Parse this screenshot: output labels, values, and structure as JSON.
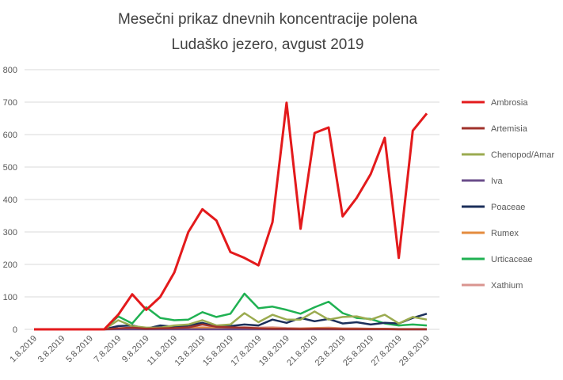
{
  "chart_data": {
    "type": "line",
    "title": "Mesečni prikaz dnevnih koncentracije polena",
    "subtitle": "Ludaško jezero, avgust 2019",
    "categories": [
      "1.8.2019",
      null,
      "3.8.2019",
      null,
      "5.8.2019",
      null,
      "7.8.2019",
      null,
      "9.8.2019",
      null,
      "11.8.2019",
      null,
      "13.8.2019",
      null,
      "15.8.2019",
      null,
      "17.8.2019",
      null,
      "19.8.2019",
      null,
      "21.8.2019",
      null,
      "23.8.2019",
      null,
      "25.8.2019",
      null,
      "27.8.2019",
      null,
      "29.8.2019"
    ],
    "series": [
      {
        "name": "Ambrosia",
        "color": "#e31a1c",
        "values": [
          0,
          0,
          0,
          0,
          0,
          0,
          45,
          108,
          60,
          100,
          175,
          300,
          370,
          335,
          238,
          220,
          197,
          330,
          698,
          310,
          605,
          622,
          348,
          405,
          478,
          590,
          220,
          612,
          665
        ]
      },
      {
        "name": "Artemisia",
        "color": "#a0322b",
        "values": [
          0,
          0,
          0,
          0,
          0,
          0,
          3,
          5,
          2,
          3,
          4,
          6,
          15,
          8,
          6,
          5,
          3,
          2,
          2,
          1,
          2,
          2,
          1,
          1,
          1,
          1,
          0,
          0,
          0
        ]
      },
      {
        "name": "Chenopod/Amar",
        "color": "#9bab50",
        "values": [
          0,
          0,
          0,
          0,
          0,
          0,
          28,
          10,
          5,
          5,
          12,
          15,
          28,
          12,
          15,
          50,
          22,
          45,
          30,
          30,
          55,
          30,
          38,
          40,
          30,
          45,
          18,
          38,
          30
        ]
      },
      {
        "name": "Iva",
        "color": "#6a4c8a",
        "values": [
          0,
          0,
          0,
          0,
          0,
          0,
          0,
          0,
          0,
          0,
          0,
          0,
          0,
          0,
          0,
          0,
          0,
          0,
          0,
          0,
          0,
          0,
          0,
          0,
          0,
          0,
          0,
          0,
          0
        ]
      },
      {
        "name": "Poaceae",
        "color": "#1b2f5a",
        "values": [
          0,
          0,
          0,
          0,
          0,
          0,
          10,
          12,
          2,
          12,
          8,
          12,
          20,
          8,
          10,
          15,
          12,
          30,
          20,
          35,
          25,
          32,
          18,
          22,
          15,
          20,
          18,
          35,
          48
        ]
      },
      {
        "name": "Rumex",
        "color": "#e48b3e",
        "values": [
          0,
          0,
          0,
          0,
          0,
          0,
          2,
          2,
          1,
          2,
          2,
          3,
          5,
          3,
          2,
          3,
          2,
          3,
          2,
          2,
          3,
          3,
          2,
          2,
          2,
          2,
          1,
          1,
          1
        ]
      },
      {
        "name": "Urticaceae",
        "color": "#1fb152",
        "values": [
          0,
          0,
          0,
          0,
          0,
          0,
          40,
          18,
          68,
          35,
          28,
          30,
          53,
          38,
          48,
          110,
          65,
          70,
          60,
          48,
          68,
          85,
          50,
          35,
          32,
          18,
          12,
          15,
          12
        ]
      },
      {
        "name": "Xathium",
        "color": "#d9958f",
        "values": [
          0,
          0,
          0,
          0,
          0,
          0,
          1,
          2,
          1,
          2,
          3,
          4,
          6,
          5,
          4,
          6,
          5,
          6,
          4,
          3,
          4,
          5,
          3,
          3,
          2,
          2,
          1,
          1,
          1
        ]
      }
    ],
    "ylim": [
      0,
      800
    ],
    "yticks": [
      0,
      100,
      200,
      300,
      400,
      500,
      600,
      700,
      800
    ],
    "grid": true,
    "legend": "right"
  }
}
